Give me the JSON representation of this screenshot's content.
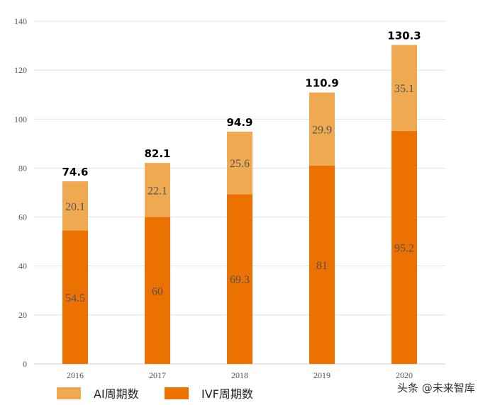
{
  "chart_data": {
    "type": "bar",
    "stacked": true,
    "categories": [
      "2016",
      "2017",
      "2018",
      "2019",
      "2020"
    ],
    "series": [
      {
        "name": "IVF周期数",
        "values": [
          54.5,
          60,
          69.3,
          81,
          95.2
        ],
        "color": "#EB7100"
      },
      {
        "name": "AI周期数",
        "values": [
          20.1,
          22.1,
          25.6,
          29.9,
          35.1
        ],
        "color": "#EFAA51"
      }
    ],
    "segment_labels": [
      [
        "54.5",
        "60",
        "69.3",
        "81",
        "95.2"
      ],
      [
        "20.1",
        "22.1",
        "25.6",
        "29.9",
        "35.1"
      ]
    ],
    "total_labels": [
      "74.6",
      "82.1",
      "94.9",
      "110.9",
      "130.3"
    ],
    "y_ticks": [
      "0",
      "20",
      "40",
      "60",
      "80",
      "100",
      "120",
      "140"
    ],
    "ylim": [
      0,
      140
    ],
    "grid": true,
    "legend_position": "bottom-left",
    "legend": [
      {
        "label": "AI周期数",
        "color": "#EFAA51"
      },
      {
        "label": "IVF周期数",
        "color": "#EB7100"
      }
    ],
    "watermark": "头条 @未来智库"
  }
}
